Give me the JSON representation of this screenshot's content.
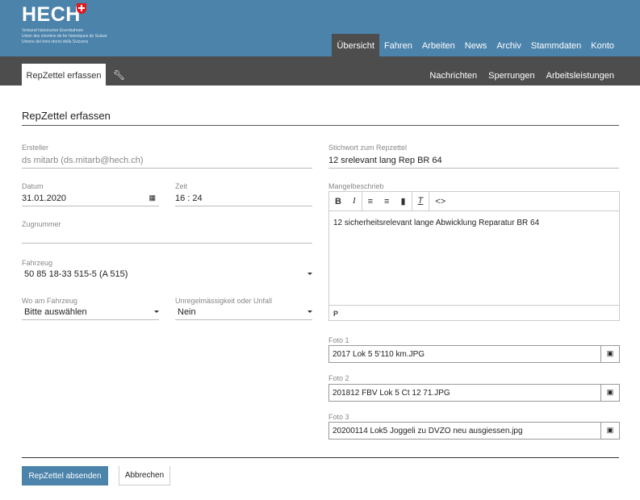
{
  "header": {
    "logo": "HECH",
    "subtitles": [
      "Verband historischer Eisenbahnen",
      "Union des chemins de fer historiques de Suisse",
      "Unione dei treni storici della Svizzera"
    ],
    "nav": [
      "Übersicht",
      "Fahren",
      "Arbeiten",
      "News",
      "Archiv",
      "Stammdaten",
      "Konto"
    ],
    "active_nav": "Übersicht",
    "accent": "#4b83ab"
  },
  "subbar": {
    "tab": "RepZettel erfassen",
    "wrench_icon": "wrench-icon",
    "links": [
      "Nachrichten",
      "Sperrungen",
      "Arbeitsleistungen"
    ]
  },
  "form": {
    "title": "RepZettel erfassen",
    "ersteller_label": "Ersteller",
    "ersteller": "ds mitarb (ds.mitarb@hech.ch)",
    "datum_label": "Datum",
    "datum": "31.01.2020",
    "zeit_label": "Zeit",
    "zeit": "16 : 24",
    "zugnummer_label": "Zugnummer",
    "zugnummer": "",
    "fahrzeug_label": "Fahrzeug",
    "fahrzeug": "50 85 18-33 515-5 (A 515)",
    "wo_label": "Wo am Fahrzeug",
    "wo": "Bitte auswählen",
    "unfall_label": "Unregelmässigkeit oder Unfall",
    "unfall": "Nein",
    "stichwort_label": "Stichwort zum Repzettel",
    "stichwort": "12 srelevant lang Rep BR 64",
    "mangel_label": "Mangelbeschrieb",
    "mangel": "12 sicherheitsrelevant lange Abwicklung Reparatur BR 64",
    "editor_path": "P",
    "fotos": [
      {
        "label": "Foto 1",
        "file": "2017 Lok 5 5'110 km.JPG"
      },
      {
        "label": "Foto 2",
        "file": "201812 FBV Lok 5 Ct 12 71.JPG"
      },
      {
        "label": "Foto 3",
        "file": "20200114 Lok5 Joggeli zu DVZO neu ausgiessen.jpg"
      }
    ],
    "submit": "RepZettel absenden",
    "cancel": "Abbrechen"
  }
}
